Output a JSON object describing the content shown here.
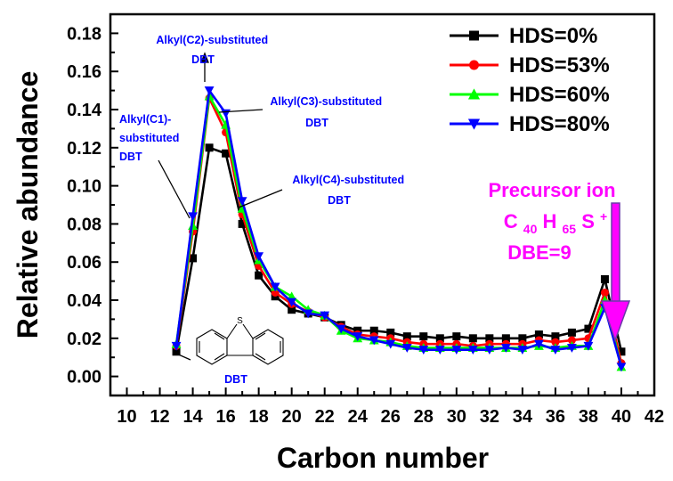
{
  "chart_data": {
    "type": "line",
    "title": "",
    "xlabel": "Carbon number",
    "ylabel": "Relative abundance",
    "xlim": [
      9,
      42
    ],
    "ylim": [
      -0.01,
      0.19
    ],
    "xticks": [
      10,
      12,
      14,
      16,
      18,
      20,
      22,
      24,
      26,
      28,
      30,
      32,
      34,
      36,
      38,
      40,
      42
    ],
    "yticks": [
      0.0,
      0.02,
      0.04,
      0.06,
      0.08,
      0.1,
      0.12,
      0.14,
      0.16,
      0.18
    ],
    "x": [
      13,
      14,
      15,
      16,
      17,
      18,
      19,
      20,
      21,
      22,
      23,
      24,
      25,
      26,
      27,
      28,
      29,
      30,
      31,
      32,
      33,
      34,
      35,
      36,
      37,
      38,
      39,
      40
    ],
    "legend_position": "top-right",
    "series": [
      {
        "name": "HDS=0%",
        "color": "#000000",
        "marker": "square",
        "values": [
          0.013,
          0.062,
          0.12,
          0.117,
          0.08,
          0.053,
          0.042,
          0.035,
          0.033,
          0.031,
          0.027,
          0.024,
          0.024,
          0.023,
          0.021,
          0.021,
          0.02,
          0.021,
          0.02,
          0.02,
          0.02,
          0.02,
          0.022,
          0.021,
          0.023,
          0.025,
          0.051,
          0.013
        ]
      },
      {
        "name": "HDS=53%",
        "color": "#ff0000",
        "marker": "circle",
        "values": [
          0.016,
          0.076,
          0.146,
          0.128,
          0.085,
          0.058,
          0.044,
          0.038,
          0.034,
          0.031,
          0.026,
          0.022,
          0.021,
          0.02,
          0.018,
          0.017,
          0.017,
          0.017,
          0.016,
          0.017,
          0.017,
          0.017,
          0.019,
          0.018,
          0.019,
          0.02,
          0.044,
          0.007
        ]
      },
      {
        "name": "HDS=60%",
        "color": "#00ff00",
        "marker": "triangle-up",
        "values": [
          0.017,
          0.079,
          0.147,
          0.132,
          0.088,
          0.061,
          0.047,
          0.042,
          0.035,
          0.032,
          0.024,
          0.02,
          0.019,
          0.018,
          0.016,
          0.015,
          0.015,
          0.015,
          0.015,
          0.015,
          0.015,
          0.015,
          0.016,
          0.015,
          0.016,
          0.016,
          0.04,
          0.005
        ]
      },
      {
        "name": "HDS=80%",
        "color": "#0000ff",
        "marker": "triangle-down",
        "values": [
          0.016,
          0.084,
          0.15,
          0.138,
          0.092,
          0.063,
          0.047,
          0.039,
          0.033,
          0.032,
          0.025,
          0.021,
          0.019,
          0.017,
          0.015,
          0.014,
          0.014,
          0.014,
          0.014,
          0.014,
          0.015,
          0.014,
          0.017,
          0.014,
          0.015,
          0.016,
          0.036,
          0.005
        ]
      }
    ],
    "annotations": [
      {
        "text": [
          "Alkyl(C2)-substituted",
          "DBT"
        ],
        "color": "#0000ff",
        "points_to": "C15"
      },
      {
        "text": [
          "Alkyl(C3)-substituted",
          "DBT"
        ],
        "color": "#0000ff",
        "points_to": "C16"
      },
      {
        "text": [
          "Alkyl(C1)-",
          "substituted",
          "DBT"
        ],
        "color": "#0000ff",
        "points_to": "C14"
      },
      {
        "text": [
          "Alkyl(C4)-substituted",
          "DBT"
        ],
        "color": "#0000ff",
        "points_to": "C17"
      },
      {
        "text": [
          "DBT"
        ],
        "color": "#0000ff",
        "points_to": "C13"
      }
    ],
    "callout": {
      "line1": "Precursor ion",
      "formula": {
        "c": "C",
        "c_n": "40",
        "h": "H",
        "h_n": "65",
        "s": "S",
        "charge": "+"
      },
      "line3": "DBE=9",
      "color": "#ff00ff"
    },
    "structure_atom": "S"
  }
}
